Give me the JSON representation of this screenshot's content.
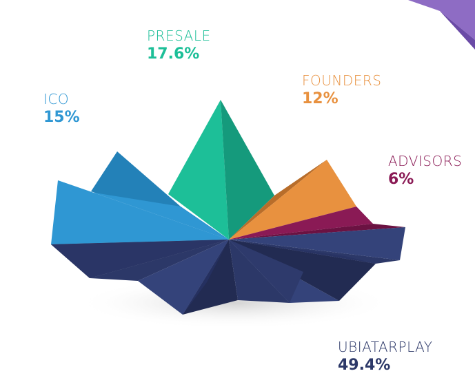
{
  "chart_data": {
    "type": "pie",
    "style": "3d-faceted-shards",
    "slices": [
      {
        "name": "PRESALE",
        "value": 17.6,
        "label": "17.6%",
        "color": "#1dbf98",
        "dark": "#159a7c"
      },
      {
        "name": "FOUNDERS",
        "value": 12,
        "label": "12%",
        "color": "#e8913f",
        "dark": "#b86d2a"
      },
      {
        "name": "ICO",
        "value": 15,
        "label": "15%",
        "color": "#2f97d3",
        "dark": "#2381b8"
      },
      {
        "name": "ADVISORS",
        "value": 6,
        "label": "6%",
        "color": "#8a1a55",
        "dark": "#6b1242"
      },
      {
        "name": "UBIATARPLAY",
        "value": 49.4,
        "label": "49.4%",
        "color": "#2c3868",
        "dark": "#222b52"
      }
    ],
    "legend": "labels-around-slices"
  },
  "colors": {
    "corner_accent_light": "#8e6cc4",
    "corner_accent_dark": "#6a4aa6",
    "shadow": "#dcdcdc"
  }
}
